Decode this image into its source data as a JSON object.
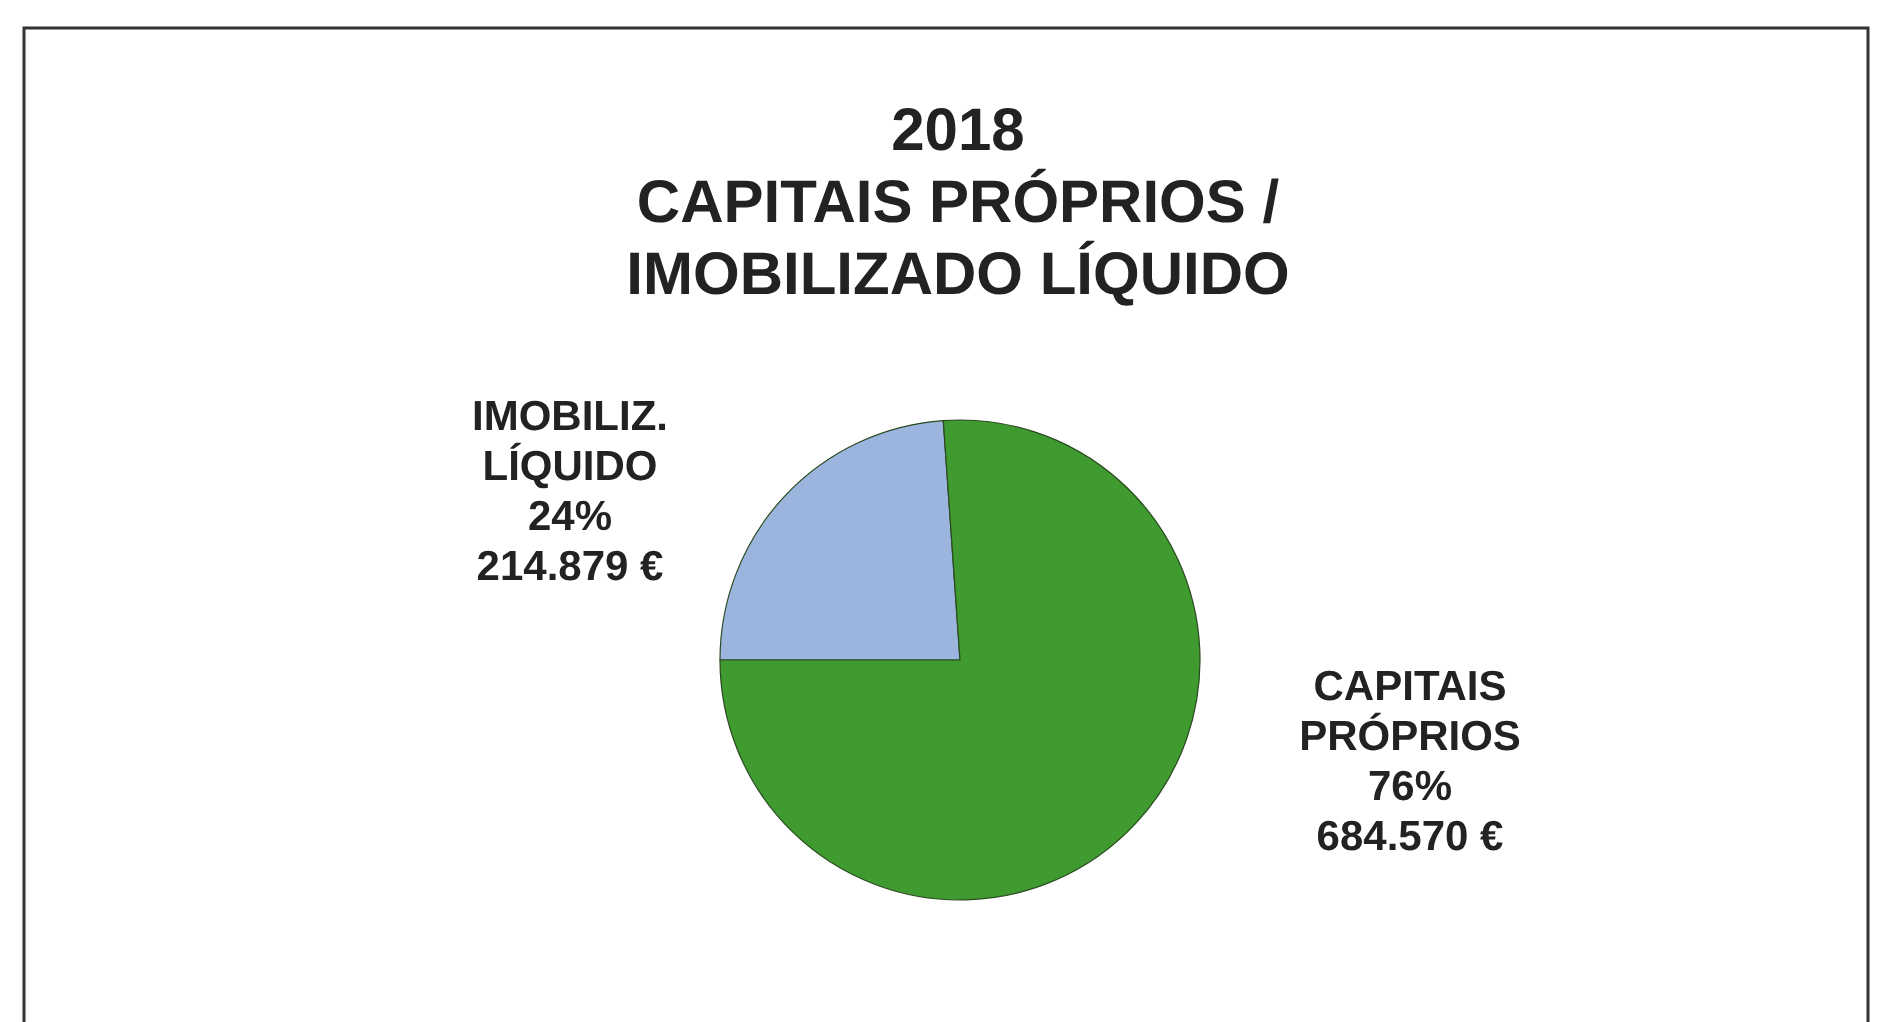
{
  "chart_data": {
    "type": "pie",
    "title": "2018\nCAPITAIS PRÓPRIOS /\nIMOBILIZADO LÍQUIDO",
    "categories": [
      "IMOBILIZ. LÍQUIDO",
      "CAPITAIS PRÓPRIOS"
    ],
    "values": [
      214879,
      684570
    ],
    "colors": [
      "#9bb5de",
      "#3f9a2f"
    ],
    "value_labels": [
      "24%\n214.879 €",
      "76%\n684.570 €"
    ]
  }
}
